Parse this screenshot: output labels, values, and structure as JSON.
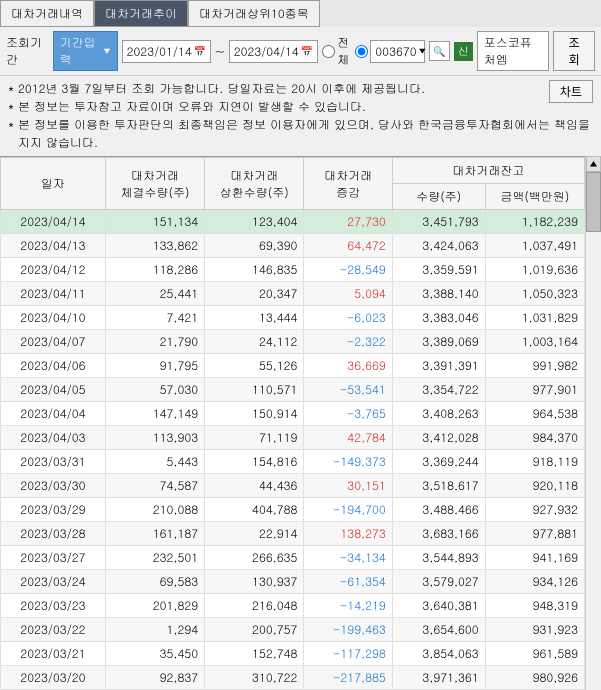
{
  "tabs": [
    {
      "label": "대차거래내역",
      "active": false
    },
    {
      "label": "대차거래추이",
      "active": true
    },
    {
      "label": "대차거래상위10종목",
      "active": false
    }
  ],
  "controls": {
    "period_label": "조회기간",
    "period_dropdown": "기간입력",
    "date_from": "2023/01/14",
    "date_to": "2023/04/14",
    "tilde": "~",
    "radio_all": "전체",
    "code_value": "003670",
    "green_badge": "신",
    "stock_name": "포스코퓨처엠",
    "search_btn": "조회",
    "chart_btn": "차트"
  },
  "notice": [
    "2012년 3월 7일부터 조회 가능합니다. 당일자료는 20시 이후에 제공됩니다.",
    "본 정보는 투자참고 자료이며 오류와 지연이 발생할 수 있습니다.",
    "본 정보를 이용한 투자판단의 최종책임은 정보 이용자에게 있으며, 당사와 한국금융투자협회에서는 책임을 지지 않습니다."
  ],
  "columns": {
    "date": "일자",
    "contract": "대차거래\n체결수량(주)",
    "repay": "대차거래\n상환수량(주)",
    "diff": "대차거래\n증감",
    "balance_header": "대차거래잔고",
    "qty": "수량(주)",
    "amount": "금액(백만원)"
  },
  "rows": [
    {
      "date": "2023/04/14",
      "contract": "151,134",
      "repay": "123,404",
      "diff": "27,730",
      "diff_sign": 1,
      "qty": "3,451,793",
      "amount": "1,182,239",
      "highlight": true
    },
    {
      "date": "2023/04/13",
      "contract": "133,862",
      "repay": "69,390",
      "diff": "64,472",
      "diff_sign": 1,
      "qty": "3,424,063",
      "amount": "1,037,491"
    },
    {
      "date": "2023/04/12",
      "contract": "118,286",
      "repay": "146,835",
      "diff": "-28,549",
      "diff_sign": -1,
      "qty": "3,359,591",
      "amount": "1,019,636"
    },
    {
      "date": "2023/04/11",
      "contract": "25,441",
      "repay": "20,347",
      "diff": "5,094",
      "diff_sign": 1,
      "qty": "3,388,140",
      "amount": "1,050,323"
    },
    {
      "date": "2023/04/10",
      "contract": "7,421",
      "repay": "13,444",
      "diff": "-6,023",
      "diff_sign": -1,
      "qty": "3,383,046",
      "amount": "1,031,829"
    },
    {
      "date": "2023/04/07",
      "contract": "21,790",
      "repay": "24,112",
      "diff": "-2,322",
      "diff_sign": -1,
      "qty": "3,389,069",
      "amount": "1,003,164"
    },
    {
      "date": "2023/04/06",
      "contract": "91,795",
      "repay": "55,126",
      "diff": "36,669",
      "diff_sign": 1,
      "qty": "3,391,391",
      "amount": "991,982"
    },
    {
      "date": "2023/04/05",
      "contract": "57,030",
      "repay": "110,571",
      "diff": "-53,541",
      "diff_sign": -1,
      "qty": "3,354,722",
      "amount": "977,901"
    },
    {
      "date": "2023/04/04",
      "contract": "147,149",
      "repay": "150,914",
      "diff": "-3,765",
      "diff_sign": -1,
      "qty": "3,408,263",
      "amount": "964,538"
    },
    {
      "date": "2023/04/03",
      "contract": "113,903",
      "repay": "71,119",
      "diff": "42,784",
      "diff_sign": 1,
      "qty": "3,412,028",
      "amount": "984,370"
    },
    {
      "date": "2023/03/31",
      "contract": "5,443",
      "repay": "154,816",
      "diff": "-149,373",
      "diff_sign": -1,
      "qty": "3,369,244",
      "amount": "918,119"
    },
    {
      "date": "2023/03/30",
      "contract": "74,587",
      "repay": "44,436",
      "diff": "30,151",
      "diff_sign": 1,
      "qty": "3,518,617",
      "amount": "920,118"
    },
    {
      "date": "2023/03/29",
      "contract": "210,088",
      "repay": "404,788",
      "diff": "-194,700",
      "diff_sign": -1,
      "qty": "3,488,466",
      "amount": "927,932"
    },
    {
      "date": "2023/03/28",
      "contract": "161,187",
      "repay": "22,914",
      "diff": "138,273",
      "diff_sign": 1,
      "qty": "3,683,166",
      "amount": "977,881"
    },
    {
      "date": "2023/03/27",
      "contract": "232,501",
      "repay": "266,635",
      "diff": "-34,134",
      "diff_sign": -1,
      "qty": "3,544,893",
      "amount": "941,169"
    },
    {
      "date": "2023/03/24",
      "contract": "69,583",
      "repay": "130,937",
      "diff": "-61,354",
      "diff_sign": -1,
      "qty": "3,579,027",
      "amount": "934,126"
    },
    {
      "date": "2023/03/23",
      "contract": "201,829",
      "repay": "216,048",
      "diff": "-14,219",
      "diff_sign": -1,
      "qty": "3,640,381",
      "amount": "948,319"
    },
    {
      "date": "2023/03/22",
      "contract": "1,294",
      "repay": "200,757",
      "diff": "-199,463",
      "diff_sign": -1,
      "qty": "3,654,600",
      "amount": "931,923"
    },
    {
      "date": "2023/03/21",
      "contract": "35,450",
      "repay": "152,748",
      "diff": "-117,298",
      "diff_sign": -1,
      "qty": "3,854,063",
      "amount": "961,589"
    },
    {
      "date": "2023/03/20",
      "contract": "92,837",
      "repay": "310,722",
      "diff": "-217,885",
      "diff_sign": -1,
      "qty": "3,971,361",
      "amount": "980,926"
    }
  ],
  "colors": {
    "pos": "#d32f2f",
    "neg": "#1976d2",
    "highlight": "#d4edda",
    "tab_active_bg": "#4a5568",
    "dropdown_bg": "#5b9bd5"
  }
}
